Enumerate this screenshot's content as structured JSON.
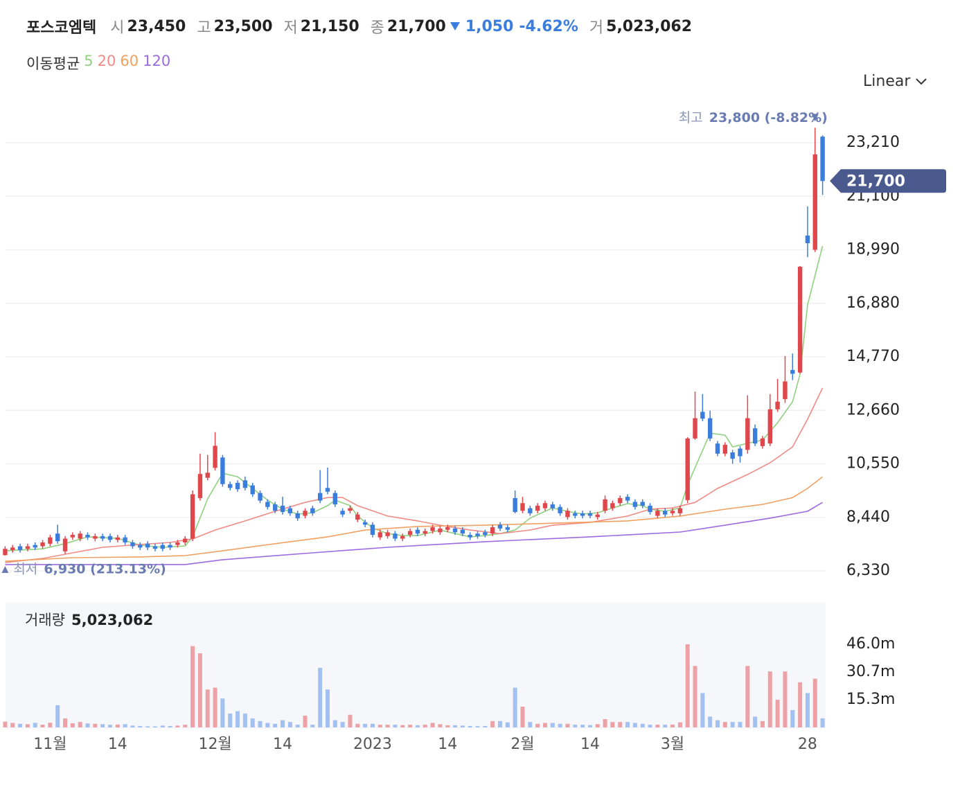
{
  "chart_data": {
    "type": "candlestick",
    "header": {
      "name": "포스코엠텍",
      "items": [
        {
          "label": "시",
          "value": "23,450"
        },
        {
          "label": "고",
          "value": "23,500"
        },
        {
          "label": "저",
          "value": "21,150"
        },
        {
          "label": "종",
          "value": "21,700"
        }
      ],
      "change": "1,050",
      "change_pct": "-4.62%",
      "volume_label": "거",
      "volume_value": "5,023,062"
    },
    "ma_title": "이동평균",
    "scale_button": "Linear",
    "categories": [
      null,
      null,
      null,
      null,
      null,
      null,
      "11월",
      null,
      null,
      null,
      null,
      null,
      null,
      null,
      null,
      "14",
      null,
      null,
      null,
      null,
      null,
      null,
      null,
      null,
      null,
      null,
      null,
      null,
      "12월",
      null,
      null,
      null,
      null,
      null,
      null,
      null,
      null,
      "14",
      null,
      null,
      null,
      null,
      null,
      null,
      null,
      null,
      null,
      null,
      null,
      "2023",
      null,
      null,
      null,
      null,
      null,
      null,
      null,
      null,
      null,
      "14",
      null,
      null,
      null,
      null,
      null,
      null,
      null,
      null,
      null,
      "2월",
      null,
      null,
      null,
      null,
      null,
      null,
      null,
      null,
      "14",
      null,
      null,
      null,
      null,
      null,
      null,
      null,
      null,
      null,
      null,
      "3월",
      null,
      null,
      null,
      null,
      null,
      null,
      null,
      null,
      null,
      null,
      null,
      null,
      null,
      null,
      null,
      null,
      null,
      "28",
      null,
      null
    ],
    "open": [
      6950,
      7150,
      7300,
      7200,
      7350,
      7300,
      7400,
      7800,
      7100,
      7650,
      7600,
      7750,
      7600,
      7700,
      7700,
      7550,
      7650,
      7450,
      7350,
      7400,
      7300,
      7350,
      7350,
      7350,
      7450,
      7600,
      9200,
      10000,
      10390,
      10800,
      9750,
      9800,
      9900,
      9700,
      9400,
      9050,
      8950,
      8900,
      8800,
      8600,
      8500,
      8800,
      9400,
      9600,
      9400,
      8700,
      8700,
      8350,
      8250,
      8150,
      7650,
      7700,
      7800,
      7600,
      7750,
      7950,
      7800,
      7900,
      7850,
      7950,
      8000,
      7950,
      7750,
      7800,
      7850,
      7800,
      8150,
      8050,
      9200,
      8700,
      8800,
      8700,
      8800,
      8950,
      8850,
      8450,
      8600,
      8600,
      8600,
      8450,
      8700,
      8800,
      9000,
      9250,
      9050,
      9050,
      8900,
      8500,
      8700,
      8600,
      8600,
      9120,
      11550,
      12600,
      12350,
      11350,
      10950,
      11000,
      11150,
      11100,
      11950,
      11250,
      11350,
      12700,
      13100,
      14250,
      14150,
      19550,
      18990,
      23450
    ],
    "high": [
      7300,
      7350,
      7400,
      7400,
      7450,
      7550,
      7750,
      8150,
      7700,
      7850,
      7900,
      7850,
      7800,
      7800,
      7800,
      7750,
      7750,
      7550,
      7450,
      7500,
      7400,
      7450,
      7450,
      7550,
      7700,
      9500,
      10950,
      10900,
      11800,
      10900,
      9850,
      9900,
      10050,
      9800,
      9500,
      9150,
      9050,
      9250,
      8900,
      8700,
      8800,
      8900,
      10300,
      10400,
      9500,
      8800,
      8900,
      8650,
      8350,
      8250,
      7950,
      7950,
      7900,
      7800,
      8000,
      8050,
      8000,
      8150,
      8100,
      8150,
      8100,
      8050,
      7850,
      7900,
      7950,
      8150,
      8250,
      8150,
      9500,
      9250,
      8900,
      9000,
      9100,
      9050,
      8950,
      8800,
      8700,
      8700,
      8700,
      8650,
      9300,
      9100,
      9300,
      9350,
      9150,
      9150,
      9000,
      8800,
      8800,
      8800,
      8900,
      11600,
      13400,
      13300,
      12650,
      11450,
      11400,
      11100,
      11250,
      13250,
      12100,
      11650,
      13300,
      13900,
      14800,
      14900,
      18350,
      20700,
      23800,
      23500
    ],
    "low": [
      6930,
      7050,
      7050,
      7100,
      7150,
      7200,
      7300,
      7400,
      7000,
      7550,
      7500,
      7550,
      7500,
      7500,
      7450,
      7450,
      7350,
      7200,
      7150,
      7150,
      7100,
      7100,
      7150,
      7250,
      7350,
      7500,
      9100,
      9900,
      10290,
      9650,
      9500,
      9450,
      9500,
      9250,
      9000,
      8750,
      8600,
      8550,
      8500,
      8300,
      8400,
      8500,
      9000,
      9350,
      8850,
      8450,
      8600,
      8250,
      8050,
      7650,
      7550,
      7600,
      7500,
      7500,
      7650,
      7700,
      7700,
      7800,
      7750,
      7850,
      7750,
      7700,
      7550,
      7600,
      7650,
      7700,
      7900,
      7850,
      8600,
      8600,
      8500,
      8600,
      8700,
      8700,
      8500,
      8350,
      8400,
      8400,
      8400,
      8350,
      8600,
      8700,
      8900,
      9000,
      8750,
      8800,
      8550,
      8400,
      8450,
      8500,
      8500,
      9000,
      11500,
      12230,
      11450,
      10850,
      10850,
      10550,
      10600,
      10950,
      11250,
      11150,
      11250,
      12600,
      12950,
      13850,
      14100,
      18700,
      18900,
      21150
    ],
    "close": [
      7200,
      7250,
      7150,
      7300,
      7250,
      7450,
      7650,
      7500,
      7600,
      7750,
      7800,
      7650,
      7700,
      7600,
      7550,
      7650,
      7450,
      7300,
      7250,
      7250,
      7200,
      7200,
      7250,
      7450,
      7600,
      9350,
      10150,
      10200,
      11260,
      9750,
      9600,
      9550,
      9600,
      9350,
      9100,
      8850,
      8700,
      8650,
      8600,
      8400,
      8700,
      8600,
      9100,
      9450,
      8950,
      8550,
      8800,
      8550,
      8150,
      7750,
      7850,
      7850,
      7600,
      7700,
      7900,
      7800,
      7900,
      8050,
      8000,
      8050,
      7850,
      7800,
      7650,
      7700,
      7750,
      8050,
      8000,
      7950,
      8650,
      9000,
      8600,
      8900,
      9000,
      8800,
      8600,
      8700,
      8500,
      8500,
      8500,
      8550,
      9150,
      9000,
      9200,
      9100,
      8850,
      8900,
      8650,
      8700,
      8550,
      8700,
      8800,
      11550,
      12350,
      12330,
      11550,
      10950,
      11300,
      10750,
      10850,
      12350,
      11350,
      11550,
      12700,
      13000,
      13800,
      14100,
      18320,
      19250,
      22750,
      21700
    ],
    "up_color": "#e0474c",
    "down_color": "#3b7ddd",
    "ylim": [
      5620,
      24740
    ],
    "yticks": [
      {
        "value": 6330,
        "label": "6,330"
      },
      {
        "value": 8440,
        "label": "8,440"
      },
      {
        "value": 10550,
        "label": "10,550"
      },
      {
        "value": 12660,
        "label": "12,660"
      },
      {
        "value": 14770,
        "label": "14,770"
      },
      {
        "value": 16880,
        "label": "16,880"
      },
      {
        "value": 18990,
        "label": "18,990"
      },
      {
        "value": 21100,
        "label": "21,100"
      },
      {
        "value": 23210,
        "label": "23,210"
      }
    ],
    "grid": true,
    "moving_averages": [
      {
        "name": "5",
        "color": "#8fd17f",
        "x": [
          0,
          5,
          8,
          11,
          15,
          18,
          21,
          24,
          25,
          27,
          29,
          31,
          33,
          35,
          37,
          39,
          41,
          43,
          44,
          46,
          47,
          49,
          51,
          53,
          55,
          57,
          58,
          60,
          62,
          64,
          66,
          68,
          70,
          72,
          73,
          75,
          77,
          79,
          81,
          83,
          85,
          86,
          88,
          90,
          91,
          93,
          94,
          96,
          97,
          99,
          101,
          103,
          105,
          106,
          107,
          109
        ],
        "values": [
          7120,
          7200,
          7400,
          7670,
          7610,
          7340,
          7260,
          7310,
          7670,
          9170,
          10180,
          10040,
          9580,
          9120,
          8760,
          8570,
          8620,
          8900,
          9120,
          8900,
          8490,
          8020,
          7800,
          7720,
          7720,
          7860,
          7940,
          7800,
          7670,
          7720,
          7800,
          7940,
          8410,
          8680,
          8810,
          8680,
          8570,
          8620,
          8810,
          8980,
          8900,
          8760,
          8680,
          8810,
          9720,
          11080,
          11760,
          11680,
          11220,
          11360,
          11490,
          12170,
          13000,
          14090,
          16820,
          19140
        ]
      },
      {
        "name": "20",
        "color": "#f08a84",
        "x": [
          0,
          5,
          9,
          13,
          18,
          22,
          25,
          28,
          32,
          36,
          40,
          43,
          45,
          47,
          51,
          55,
          58,
          62,
          66,
          70,
          73,
          78,
          83,
          86,
          89,
          92,
          95,
          99,
          102,
          105,
          107,
          109
        ],
        "values": [
          6660,
          6820,
          7040,
          7260,
          7370,
          7450,
          7590,
          7940,
          8300,
          8680,
          9030,
          9220,
          9220,
          8900,
          8490,
          8300,
          8130,
          7940,
          7800,
          7940,
          8130,
          8240,
          8490,
          8760,
          8810,
          9030,
          9580,
          10130,
          10590,
          11220,
          12310,
          13540
        ]
      },
      {
        "name": "60",
        "color": "#f0a060",
        "x": [
          0,
          9,
          18,
          24,
          29,
          36,
          43,
          48,
          55,
          64,
          73,
          83,
          90,
          96,
          101,
          105,
          107,
          109
        ],
        "values": [
          6710,
          6850,
          6880,
          6930,
          7120,
          7400,
          7670,
          7940,
          8080,
          8130,
          8210,
          8300,
          8490,
          8760,
          8950,
          9220,
          9580,
          10040
        ]
      },
      {
        "name": "120",
        "color": "#9b6ae0",
        "x": [
          0,
          9,
          24,
          29,
          41,
          51,
          64,
          78,
          90,
          96,
          102,
          107,
          109
        ],
        "values": [
          6580,
          6580,
          6580,
          6770,
          7040,
          7260,
          7480,
          7670,
          7860,
          8130,
          8410,
          8680,
          9030
        ]
      }
    ],
    "high_annotation": {
      "label": "최고",
      "text": "23,800 (-8.82%)"
    },
    "low_annotation": {
      "label": "최저",
      "text": "6,930 (213.13%)"
    },
    "price_tag": "21,700",
    "volume": {
      "title": "거래량",
      "value_text": "5,023,062",
      "up_color": "#eba1a5",
      "down_color": "#a3c1f0",
      "ylim": [
        0,
        69
      ],
      "yticks": [
        {
          "value": 15.3,
          "label": "15.3m"
        },
        {
          "value": 30.7,
          "label": "30.7m"
        },
        {
          "value": 46,
          "label": "46.0m"
        }
      ],
      "values": [
        3.2,
        2.5,
        2.0,
        1.8,
        2.5,
        1.5,
        2.6,
        12.3,
        5.0,
        2.3,
        3.0,
        2.2,
        2.0,
        1.8,
        1.5,
        1.6,
        1.8,
        1.0,
        0.8,
        0.6,
        0.6,
        1.0,
        0.8,
        1.0,
        1.5,
        45,
        41,
        21,
        22,
        16,
        7.7,
        9,
        7.7,
        5,
        3.5,
        2.5,
        2.0,
        4,
        3,
        1.5,
        6.5,
        1.5,
        33,
        21,
        4,
        3,
        7,
        2,
        2,
        2,
        1.5,
        1.5,
        1.5,
        1.3,
        1.5,
        1.2,
        1.5,
        2.5,
        1.8,
        1.2,
        1.2,
        1.0,
        0.8,
        0.7,
        0.8,
        3.5,
        3.5,
        2.8,
        22,
        11.5,
        3,
        2,
        2.5,
        2.5,
        2,
        2,
        1.5,
        1.5,
        1.3,
        1.8,
        4.6,
        3,
        3,
        3,
        2.5,
        2,
        1.5,
        1.5,
        1.5,
        1.6,
        2.8,
        46,
        34,
        19,
        6,
        4,
        3,
        3,
        3,
        34,
        6,
        3.5,
        31,
        15.3,
        31,
        9.6,
        25,
        19,
        27,
        5.023
      ]
    }
  }
}
